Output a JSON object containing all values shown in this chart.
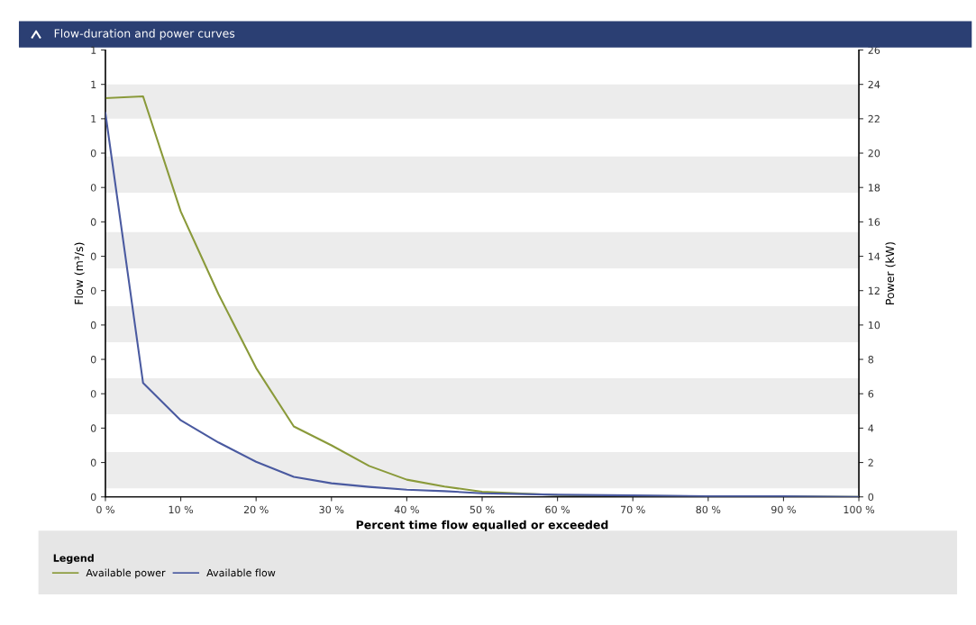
{
  "chart_data": {
    "type": "line",
    "title": "Flow-duration and power curves",
    "xlabel": "Percent time flow equalled or exceeded",
    "ylabel": "Flow (m³/s)",
    "y2label": "Power (kW)",
    "legend_title": "Legend",
    "legend": "bottom",
    "marker": "none",
    "line_style": "solid",
    "x": [
      0,
      5,
      10,
      15,
      20,
      25,
      30,
      35,
      40,
      45,
      50,
      60,
      70,
      80,
      90,
      100
    ],
    "series": [
      {
        "name": "Available power",
        "color": "#8a9a3a",
        "axis": "y2",
        "values": [
          23.2,
          23.3,
          16.6,
          11.8,
          7.5,
          4.1,
          3.0,
          1.8,
          1.0,
          0.6,
          0.3,
          0.1,
          0.05,
          0.03,
          0.02,
          0
        ]
      },
      {
        "name": "Available flow",
        "color": "#4a5aa0",
        "values": [
          0.536,
          0.159,
          0.107,
          0.076,
          0.049,
          0.028,
          0.019,
          0.014,
          0.01,
          0.008,
          0.005,
          0.003,
          0.002,
          0.001,
          0.001,
          0
        ]
      }
    ],
    "bands": [
      {
        "axis": "y2",
        "from": 22,
        "to": 24,
        "color": "#ececec"
      },
      {
        "axis": "y2",
        "from": 17.7,
        "to": 19.8,
        "color": "#ececec"
      },
      {
        "axis": "y2",
        "from": 13.3,
        "to": 15.4,
        "color": "#ececec"
      },
      {
        "axis": "y2",
        "from": 9.0,
        "to": 11.1,
        "color": "#ececec"
      },
      {
        "axis": "y2",
        "from": 4.8,
        "to": 6.9,
        "color": "#ececec"
      },
      {
        "axis": "y2",
        "from": 0.5,
        "to": 2.6,
        "color": "#ececec"
      }
    ],
    "xlim": [
      0,
      100
    ],
    "xticks": [
      {
        "value": 0,
        "label": "0 %"
      },
      {
        "value": 10,
        "label": "10 %"
      },
      {
        "value": 20,
        "label": "20 %"
      },
      {
        "value": 30,
        "label": "30 %"
      },
      {
        "value": 40,
        "label": "40 %"
      },
      {
        "value": 50,
        "label": "50 %"
      },
      {
        "value": 60,
        "label": "60 %"
      },
      {
        "value": 70,
        "label": "70 %"
      },
      {
        "value": 80,
        "label": "80 %"
      },
      {
        "value": 90,
        "label": "90 %"
      },
      {
        "value": 100,
        "label": "100 %"
      }
    ],
    "ylim": [
      0,
      0.624
    ],
    "yticks": [
      {
        "value": 0,
        "label": "0"
      },
      {
        "value": 0.048,
        "label": "0"
      },
      {
        "value": 0.096,
        "label": "0"
      },
      {
        "value": 0.144,
        "label": "0"
      },
      {
        "value": 0.192,
        "label": "0"
      },
      {
        "value": 0.24,
        "label": "0"
      },
      {
        "value": 0.288,
        "label": "0"
      },
      {
        "value": 0.336,
        "label": "0"
      },
      {
        "value": 0.384,
        "label": "0"
      },
      {
        "value": 0.432,
        "label": "0"
      },
      {
        "value": 0.48,
        "label": "0"
      },
      {
        "value": 0.528,
        "label": "1"
      },
      {
        "value": 0.576,
        "label": "1"
      },
      {
        "value": 0.624,
        "label": "1"
      }
    ],
    "y2lim": [
      0,
      26
    ],
    "y2ticks": [
      0,
      2,
      4,
      6,
      8,
      10,
      12,
      14,
      16,
      18,
      20,
      22,
      24,
      26
    ]
  }
}
